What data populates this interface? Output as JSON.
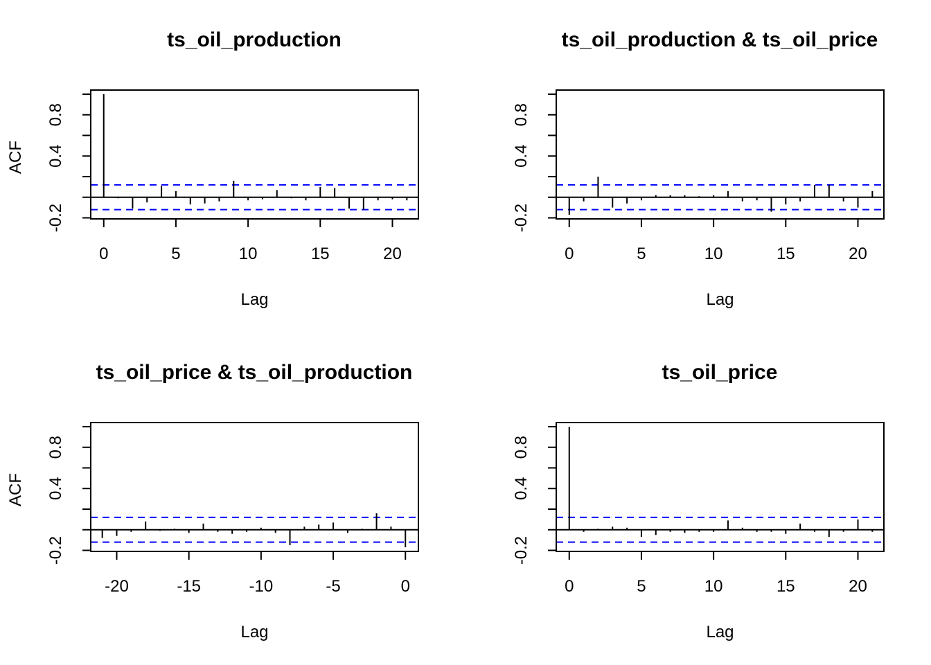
{
  "colors": {
    "background": "#ffffff",
    "spikes": "#000000",
    "ci_lines": "#0000ff",
    "frame": "#000000"
  },
  "chart_data": [
    {
      "type": "bar",
      "title": "ts_oil_production",
      "xlabel": "Lag",
      "ylabel": "ACF",
      "xlim": [
        -0.9,
        21.8
      ],
      "ylim": [
        -0.2,
        1.0
      ],
      "x_ticks": [
        0,
        5,
        10,
        15,
        20
      ],
      "x_tick_labels": [
        "0",
        "5",
        "10",
        "15",
        "20"
      ],
      "y_ticks": [
        -0.2,
        0.0,
        0.2,
        0.4,
        0.6,
        0.8,
        1.0
      ],
      "y_tick_labels": [
        "-0.2",
        "",
        "",
        "0.4",
        "",
        "0.8",
        ""
      ],
      "ci": 0.12,
      "x": [
        0,
        1,
        2,
        3,
        4,
        5,
        6,
        7,
        8,
        9,
        10,
        11,
        12,
        13,
        14,
        15,
        16,
        17,
        18,
        19,
        20,
        21
      ],
      "values": [
        1.0,
        -0.01,
        -0.11,
        -0.05,
        0.11,
        0.06,
        -0.07,
        -0.06,
        -0.04,
        0.16,
        -0.03,
        -0.02,
        0.07,
        -0.01,
        -0.03,
        0.1,
        0.09,
        -0.11,
        -0.12,
        -0.03,
        -0.02,
        -0.03
      ]
    },
    {
      "type": "bar",
      "title": "ts_oil_production & ts_oil_price",
      "xlabel": "Lag",
      "ylabel": "",
      "xlim": [
        -0.9,
        21.8
      ],
      "ylim": [
        -0.2,
        1.0
      ],
      "x_ticks": [
        0,
        5,
        10,
        15,
        20
      ],
      "x_tick_labels": [
        "0",
        "5",
        "10",
        "15",
        "20"
      ],
      "y_ticks": [
        -0.2,
        0.0,
        0.2,
        0.4,
        0.6,
        0.8,
        1.0
      ],
      "y_tick_labels": [
        "-0.2",
        "",
        "",
        "0.4",
        "",
        "0.8",
        ""
      ],
      "ci": 0.12,
      "x": [
        0,
        1,
        2,
        3,
        4,
        5,
        6,
        7,
        8,
        9,
        10,
        11,
        12,
        13,
        14,
        15,
        16,
        17,
        18,
        19,
        20,
        21
      ],
      "values": [
        -0.17,
        -0.04,
        0.2,
        -0.1,
        -0.06,
        -0.03,
        0.02,
        0.02,
        0.02,
        0.01,
        0.02,
        0.06,
        -0.04,
        -0.03,
        -0.14,
        -0.07,
        -0.04,
        0.12,
        0.12,
        -0.04,
        -0.1,
        0.06
      ]
    },
    {
      "type": "bar",
      "title": "ts_oil_price & ts_oil_production",
      "xlabel": "Lag",
      "ylabel": "ACF",
      "xlim": [
        -21.8,
        0.9
      ],
      "ylim": [
        -0.2,
        1.0
      ],
      "x_ticks": [
        -20,
        -15,
        -10,
        -5,
        0
      ],
      "x_tick_labels": [
        "-20",
        "-15",
        "-10",
        "-5",
        "0"
      ],
      "y_ticks": [
        -0.2,
        0.0,
        0.2,
        0.4,
        0.6,
        0.8,
        1.0
      ],
      "y_tick_labels": [
        "-0.2",
        "",
        "",
        "0.4",
        "",
        "0.8",
        ""
      ],
      "ci": 0.12,
      "x": [
        -21,
        -20,
        -19,
        -18,
        -17,
        -16,
        -15,
        -14,
        -13,
        -12,
        -11,
        -10,
        -9,
        -8,
        -7,
        -6,
        -5,
        -4,
        -3,
        -2,
        -1,
        0
      ],
      "values": [
        -0.08,
        -0.06,
        -0.02,
        0.08,
        -0.01,
        0.01,
        -0.03,
        0.06,
        -0.02,
        -0.04,
        -0.02,
        0.02,
        -0.03,
        -0.15,
        0.03,
        0.05,
        0.07,
        -0.03,
        0.01,
        0.16,
        0.03,
        -0.17
      ]
    },
    {
      "type": "bar",
      "title": "ts_oil_price",
      "xlabel": "Lag",
      "ylabel": "",
      "xlim": [
        -0.9,
        21.8
      ],
      "ylim": [
        -0.2,
        1.0
      ],
      "x_ticks": [
        0,
        5,
        10,
        15,
        20
      ],
      "x_tick_labels": [
        "0",
        "5",
        "10",
        "15",
        "20"
      ],
      "y_ticks": [
        -0.2,
        0.0,
        0.2,
        0.4,
        0.6,
        0.8,
        1.0
      ],
      "y_tick_labels": [
        "-0.2",
        "",
        "",
        "0.4",
        "",
        "0.8",
        ""
      ],
      "ci": 0.12,
      "x": [
        0,
        1,
        2,
        3,
        4,
        5,
        6,
        7,
        8,
        9,
        10,
        11,
        12,
        13,
        14,
        15,
        16,
        17,
        18,
        19,
        20,
        21
      ],
      "values": [
        1.0,
        -0.02,
        0.01,
        0.03,
        0.02,
        -0.07,
        -0.05,
        -0.02,
        -0.03,
        -0.02,
        -0.02,
        0.09,
        0.02,
        -0.02,
        -0.02,
        -0.04,
        0.06,
        -0.02,
        -0.07,
        -0.02,
        0.1,
        -0.02
      ]
    }
  ]
}
